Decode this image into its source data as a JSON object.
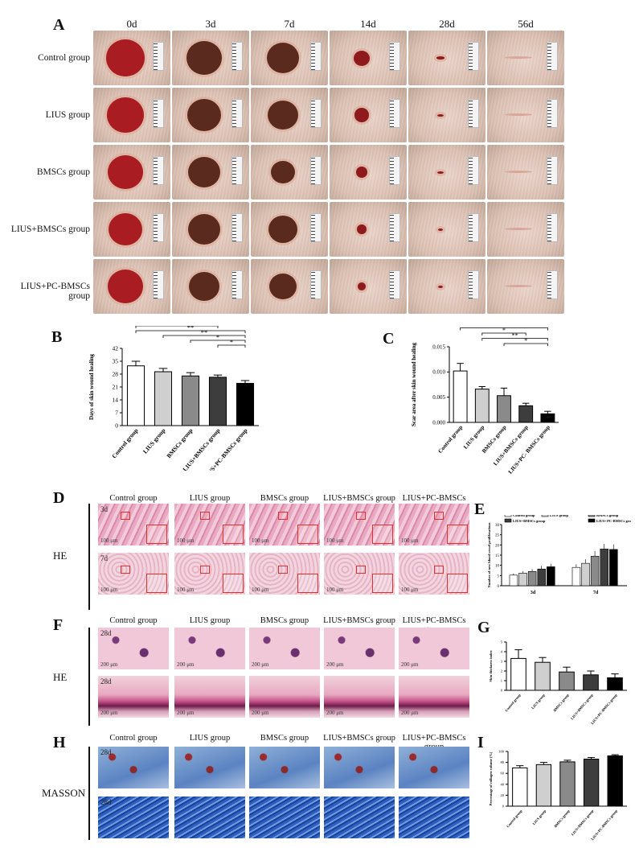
{
  "panel_letters": {
    "A": "A",
    "B": "B",
    "C": "C",
    "D": "D",
    "E": "E",
    "F": "F",
    "G": "G",
    "H": "H",
    "I": "I"
  },
  "panelA": {
    "days": [
      "0d",
      "3d",
      "7d",
      "14d",
      "28d",
      "56d"
    ],
    "groups": [
      "Control group",
      "LIUS group",
      "BMSCs group",
      "LIUS+BMSCs group",
      "LIUS+PC-BMSCs group"
    ]
  },
  "histo_columns": [
    "Control group",
    "LIUS group",
    "BMSCs group",
    "LIUS+BMSCs group",
    "LIUS+PC-BMSCs group"
  ],
  "stain_labels": {
    "D": "HE",
    "F": "HE",
    "H": "MASSON"
  },
  "time_labels": {
    "D_top": "3d",
    "D_bottom": "7d",
    "F_top": "28d",
    "F_bottom": "28d",
    "H_top": "28d",
    "H_bottom": "28d"
  },
  "scale_bars": {
    "D": "100 μm",
    "F": "200 μm"
  },
  "colors": {
    "red_box": "#e0302a",
    "bar_fills": [
      "#ffffff",
      "#cfcfcf",
      "#8a8a8a",
      "#3d3d3d",
      "#000000"
    ]
  },
  "chart_data": [
    {
      "panel": "B",
      "type": "bar",
      "categories": [
        "Control group",
        "LIUS group",
        "BMSCs group",
        "LIUS+BMSCs group",
        "LIUS+PC-BMSCs group"
      ],
      "values": [
        32.5,
        29.3,
        27.0,
        26.3,
        23.0
      ],
      "errors": [
        2.5,
        1.8,
        1.8,
        1.2,
        1.5
      ],
      "ylabel": "Days of skin wound healing",
      "yticks": [
        "0",
        "7",
        "14",
        "21",
        "28",
        "35",
        "42"
      ],
      "ylim": [
        0,
        42
      ],
      "significance": [
        {
          "from": 0,
          "to": 1,
          "label": "*"
        },
        {
          "from": 0,
          "to": 2,
          "label": "**"
        },
        {
          "from": 0,
          "to": 3,
          "label": "**"
        },
        {
          "from": 0,
          "to": 4,
          "label": "**"
        },
        {
          "from": 1,
          "to": 4,
          "label": "**"
        },
        {
          "from": 2,
          "to": 4,
          "label": "*"
        },
        {
          "from": 3,
          "to": 4,
          "label": "*"
        }
      ]
    },
    {
      "panel": "C",
      "type": "bar",
      "categories": [
        "Control group",
        "LIUS group",
        "BMSCs group",
        "LIUS+BMSCs group",
        "LIUS+PC- BMSCs group"
      ],
      "values": [
        0.0102,
        0.0066,
        0.0053,
        0.0033,
        0.0017
      ],
      "errors": [
        0.0015,
        0.0005,
        0.0015,
        0.0005,
        0.0005
      ],
      "ylabel": "Scar area after skin wound healing",
      "yticks": [
        "0.000",
        "0.005",
        "0.010",
        "0.015"
      ],
      "ylim": [
        0,
        0.015
      ],
      "significance": [
        {
          "from": 0,
          "to": 1,
          "label": "*"
        },
        {
          "from": 0,
          "to": 2,
          "label": "**"
        },
        {
          "from": 0,
          "to": 3,
          "label": "****"
        },
        {
          "from": 0,
          "to": 4,
          "label": "****"
        },
        {
          "from": 1,
          "to": 3,
          "label": "*"
        },
        {
          "from": 1,
          "to": 4,
          "label": "**"
        },
        {
          "from": 2,
          "to": 4,
          "label": "*"
        }
      ]
    },
    {
      "panel": "E",
      "type": "bar",
      "legend": [
        "Control group",
        "LIUS group",
        "BMSCs group",
        "LIUS+BMSCs group",
        "LIUS+PC-BMSCs group"
      ],
      "groups": [
        "3d",
        "7d"
      ],
      "series": [
        {
          "name": "Control group",
          "values": [
            5.2,
            9.0
          ],
          "errors": [
            0.8,
            1.5
          ]
        },
        {
          "name": "LIUS group",
          "values": [
            6.2,
            11.0
          ],
          "errors": [
            1.0,
            2.0
          ]
        },
        {
          "name": "BMSCs group",
          "values": [
            7.0,
            14.5
          ],
          "errors": [
            1.2,
            2.5
          ]
        },
        {
          "name": "LIUS+BMSCs group",
          "values": [
            8.2,
            18.0
          ],
          "errors": [
            1.5,
            2.5
          ]
        },
        {
          "name": "LIUS+PC-BMSCs group",
          "values": [
            9.3,
            17.8
          ],
          "errors": [
            1.5,
            2.5
          ]
        }
      ],
      "ylabel": "Number of new blood vessel proliferations",
      "yticks": [
        "0",
        "5",
        "10",
        "15",
        "20",
        "25",
        "30"
      ],
      "ylim": [
        0,
        30
      ]
    },
    {
      "panel": "G",
      "type": "bar",
      "categories": [
        "Control group",
        "LIUS group",
        "BMSCs group",
        "LIUS+BMSCs group",
        "LIUS+PC-BMSCs group"
      ],
      "values": [
        3.3,
        2.9,
        1.9,
        1.6,
        1.3
      ],
      "errors": [
        0.9,
        0.5,
        0.5,
        0.4,
        0.4
      ],
      "ylabel": "Skin thickness index",
      "yticks": [
        "0",
        "1",
        "2",
        "3",
        "4",
        "5"
      ],
      "ylim": [
        0,
        5
      ]
    },
    {
      "panel": "I",
      "type": "bar",
      "categories": [
        "Control group",
        "LIUS group",
        "BMSCs group",
        "LIUS+BMSCs group",
        "LIUS+PC-BMSCs group"
      ],
      "values": [
        70,
        76,
        81,
        86,
        92
      ],
      "errors": [
        4,
        4,
        3,
        3,
        2
      ],
      "ylabel": "Percentage of collagen volume (%)",
      "yticks": [
        "0",
        "20",
        "40",
        "60",
        "80",
        "100"
      ],
      "ylim": [
        0,
        100
      ]
    }
  ]
}
